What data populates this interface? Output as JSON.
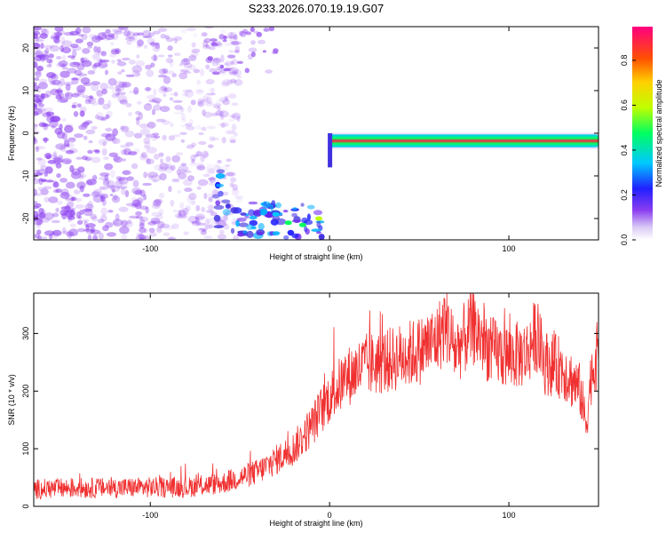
{
  "title": "S233.2026.070.19.19.G07",
  "colors": {
    "snr_line": "#f03030",
    "noise": "#8a3cf0",
    "axis": "#000000",
    "background": "#ffffff"
  },
  "chart_data": [
    {
      "type": "heatmap",
      "name": "spectrogram",
      "xlabel": "Height of straight line (km)",
      "ylabel": "Frequency (Hz)",
      "xlim": [
        -165,
        150
      ],
      "ylim": [
        -25,
        25
      ],
      "xticks": [
        -100,
        0,
        100
      ],
      "yticks": [
        -20,
        -10,
        0,
        10,
        20
      ],
      "colorbar": {
        "label": "Normalized spectral amplitude",
        "range": [
          0,
          0.95
        ],
        "ticks": [
          0.0,
          0.2,
          0.4,
          0.6,
          0.8
        ]
      },
      "features": [
        {
          "description": "diffuse noise",
          "x_range": [
            -165,
            -60
          ],
          "freq_range": [
            -25,
            25
          ],
          "amplitude": 0.05
        },
        {
          "description": "descending signal",
          "x_range": [
            -65,
            -2
          ],
          "freq_range": [
            -25,
            -13
          ],
          "amplitude": 0.3
        },
        {
          "description": "signal after reflection",
          "x_range": [
            0,
            150
          ],
          "freq_range": [
            -3,
            0
          ],
          "amplitude": 0.9
        }
      ]
    },
    {
      "type": "line",
      "name": "snr",
      "xlabel": "Height of straight line (km)",
      "ylabel": "SNR (10 * v/v)",
      "xlim": [
        -165,
        150
      ],
      "ylim": [
        0,
        370
      ],
      "xticks": [
        -100,
        0,
        100
      ],
      "yticks": [
        0,
        100,
        200,
        300
      ],
      "series": [
        {
          "name": "SNR",
          "x": [
            -165,
            -140,
            -120,
            -100,
            -80,
            -60,
            -40,
            -20,
            -10,
            0,
            10,
            20,
            30,
            40,
            50,
            60,
            65,
            70,
            80,
            90,
            100,
            110,
            115,
            120,
            130,
            140,
            143,
            146,
            150
          ],
          "y": [
            30,
            32,
            32,
            33,
            33,
            40,
            60,
            100,
            140,
            190,
            225,
            245,
            250,
            260,
            270,
            290,
            320,
            270,
            310,
            270,
            260,
            265,
            300,
            250,
            240,
            200,
            140,
            230,
            270
          ]
        }
      ]
    }
  ]
}
